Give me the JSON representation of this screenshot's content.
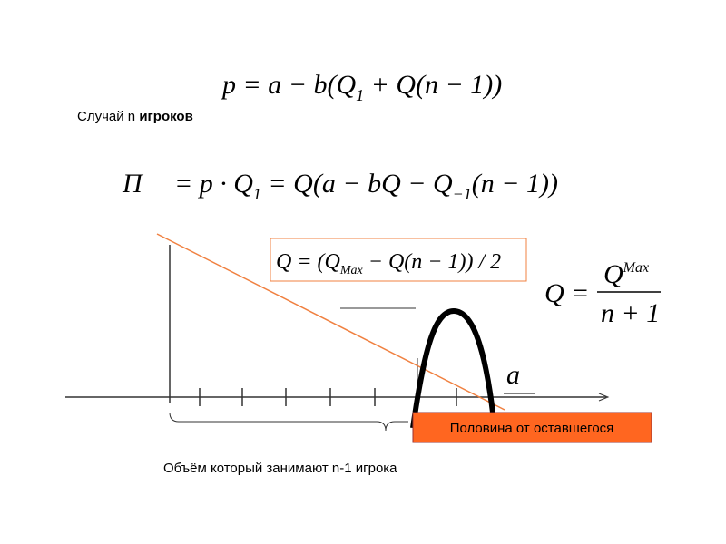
{
  "formula_top": [
    "p = a − b(Q",
    "1",
    " + Q(n − 1))"
  ],
  "case_label": [
    "Случай n ",
    "игроков"
  ],
  "formula_profit": [
    "Π",
    "= p · Q",
    "1",
    " = Q(a − bQ − Q",
    "−1",
    "(n − 1))"
  ],
  "formula_box": [
    "Q = (Q",
    "Max",
    " − Q(n − 1)) / 2"
  ],
  "formula_right": {
    "left": "Q =",
    "numerator": "Q",
    "superscript": "Max",
    "denominator": "n + 1"
  },
  "fraction_a": "a",
  "highlight_label": "Половина от оставшегося",
  "bottom_label": "Объём который занимают n-1 игрока"
}
